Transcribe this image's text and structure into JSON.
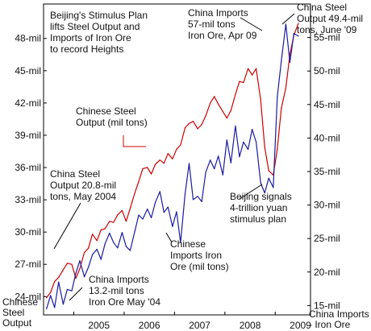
{
  "chart_data": {
    "type": "line",
    "title": "Beijing's Stimulus Plan lifts Steel Output and Imports of Iron Ore to record Heights",
    "title_lines": [
      "Beijing's Stimulus Plan",
      "lifts Steel Output and",
      "Imports of Iron Ore",
      "to record Heights"
    ],
    "x_ticks": [
      "2005",
      "2006",
      "2007",
      "2008",
      "2009"
    ],
    "x_range": [
      2004.4,
      2009.7
    ],
    "left_axis": {
      "ylim": [
        22.3,
        51.2
      ],
      "ticks": [
        24,
        27,
        30,
        33,
        36,
        39,
        42,
        45,
        48
      ],
      "tick_labels": [
        "24-mil",
        "27-mil",
        "30-mil",
        "33-mil",
        "36-mil",
        "39-mil",
        "42-mil",
        "45-mil",
        "48-mil"
      ],
      "label_lines": [
        "Chinese",
        "Steel",
        "Output"
      ],
      "color": "#cc0000"
    },
    "right_axis": {
      "ylim": [
        13.6,
        60.0
      ],
      "ticks": [
        15,
        20,
        25,
        30,
        35,
        40,
        45,
        50,
        55
      ],
      "tick_labels": [
        "15-mil",
        "20-mil",
        "25-mil",
        "30-mil",
        "35-mil",
        "40-mil",
        "45-mil",
        "50-mil",
        "55-mil"
      ],
      "label_lines": [
        "China Imports",
        "- Iron Ore"
      ],
      "color": "#1a1aa0"
    },
    "series": [
      {
        "name": "Chinese Steel Output (mil tons)",
        "axis": "left",
        "color": "#cc0000",
        "label_lines": [
          "Chinese Steel",
          "Output (mil tons)"
        ],
        "x": [
          2004.46,
          2004.54,
          2004.62,
          2004.7,
          2004.79,
          2004.87,
          2004.96,
          2005.04,
          2005.12,
          2005.21,
          2005.29,
          2005.37,
          2005.46,
          2005.54,
          2005.62,
          2005.71,
          2005.79,
          2005.87,
          2005.96,
          2006.04,
          2006.12,
          2006.21,
          2006.29,
          2006.37,
          2006.46,
          2006.54,
          2006.62,
          2006.71,
          2006.79,
          2006.87,
          2006.96,
          2007.04,
          2007.12,
          2007.21,
          2007.29,
          2007.37,
          2007.46,
          2007.54,
          2007.62,
          2007.71,
          2007.79,
          2007.87,
          2007.96,
          2008.04,
          2008.12,
          2008.21,
          2008.29,
          2008.37,
          2008.46,
          2008.54,
          2008.62,
          2008.71,
          2008.79,
          2008.87,
          2008.96,
          2009.04,
          2009.12,
          2009.21,
          2009.29,
          2009.37,
          2009.46
        ],
        "values": [
          23.9,
          24.4,
          25.4,
          25.8,
          26.5,
          27.1,
          27.0,
          25.7,
          26.6,
          28.1,
          28.5,
          29.8,
          29.2,
          30.2,
          30.3,
          31.0,
          30.9,
          31.6,
          32.0,
          31.0,
          32.2,
          33.6,
          34.7,
          35.9,
          36.0,
          35.4,
          36.3,
          36.7,
          36.4,
          37.3,
          36.8,
          37.7,
          38.1,
          39.7,
          40.1,
          40.3,
          39.6,
          40.0,
          40.8,
          42.0,
          42.6,
          41.9,
          41.2,
          40.6,
          41.3,
          42.8,
          44.0,
          43.9,
          45.2,
          44.6,
          45.2,
          42.3,
          37.9,
          35.7,
          35.3,
          37.7,
          41.5,
          43.4,
          46.5,
          48.3,
          49.4
        ]
      },
      {
        "name": "Chinese Imports Iron Ore (mil tons)",
        "axis": "right",
        "color": "#1a1aa0",
        "label_lines": [
          "Chinese",
          "Imports Iron",
          "Ore (mil tons)"
        ],
        "x": [
          2004.46,
          2004.54,
          2004.62,
          2004.7,
          2004.79,
          2004.87,
          2004.96,
          2005.04,
          2005.12,
          2005.21,
          2005.29,
          2005.37,
          2005.46,
          2005.54,
          2005.62,
          2005.71,
          2005.79,
          2005.87,
          2005.96,
          2006.04,
          2006.12,
          2006.21,
          2006.29,
          2006.37,
          2006.46,
          2006.54,
          2006.62,
          2006.71,
          2006.79,
          2006.87,
          2006.96,
          2007.04,
          2007.12,
          2007.21,
          2007.29,
          2007.37,
          2007.46,
          2007.54,
          2007.62,
          2007.71,
          2007.79,
          2007.87,
          2007.96,
          2008.04,
          2008.12,
          2008.21,
          2008.29,
          2008.37,
          2008.46,
          2008.54,
          2008.62,
          2008.71,
          2008.79,
          2008.87,
          2008.96,
          2009.04,
          2009.12,
          2009.21,
          2009.29,
          2009.37,
          2009.46
        ],
        "values": [
          14.5,
          16.5,
          14.7,
          18.5,
          15.2,
          17.4,
          17.2,
          19.8,
          21.7,
          19.3,
          20.7,
          22.6,
          23.4,
          21.9,
          24.2,
          25.8,
          24.4,
          23.6,
          25.9,
          23.8,
          23.2,
          26.0,
          28.5,
          27.9,
          29.4,
          28.1,
          30.4,
          32.0,
          28.9,
          29.7,
          26.8,
          29.0,
          24.4,
          31.7,
          36.2,
          30.8,
          31.3,
          30.5,
          34.9,
          36.7,
          35.4,
          37.3,
          34.5,
          39.7,
          36.3,
          41.8,
          37.2,
          39.4,
          38.3,
          41.3,
          39.4,
          33.3,
          31.8,
          34.0,
          32.6,
          46.1,
          51.5,
          57.0,
          51.3,
          55.6,
          55.2
        ]
      }
    ],
    "annotations": [
      {
        "id": "steel-may-2004",
        "lines": [
          "China Steel",
          "Output 20.8-mil",
          "tons, May 2004"
        ]
      },
      {
        "id": "imports-may-2004",
        "lines": [
          "China Imports",
          "13.2-mil tons",
          "Iron Ore May '04"
        ]
      },
      {
        "id": "imports-apr-2009",
        "lines": [
          "China Imports",
          "57-mil tons",
          "Iron Ore, Apr 09"
        ]
      },
      {
        "id": "steel-jun-2009",
        "lines": [
          "China Steel",
          "Output 49.4-mil",
          "tons, June '09"
        ]
      },
      {
        "id": "beijing-stimulus",
        "lines": [
          "Beijing signals",
          "4-trillion yuan",
          "stimulus plan"
        ]
      }
    ],
    "grid": false,
    "legend": "none"
  }
}
